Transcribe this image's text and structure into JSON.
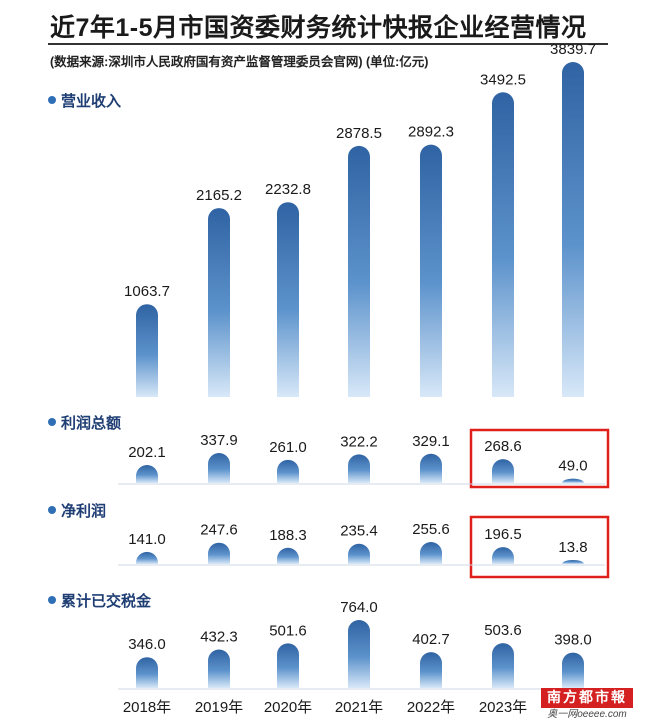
{
  "title": "近7年1-5月市国资委财务统计快报企业经营情况",
  "subtitle": "(数据来源:深圳市人民政府国有资产监督管理委员会官网) (单位:亿元)",
  "watermark": {
    "main": "南方都市報",
    "sub": "奥一网oeeee.com"
  },
  "colors": {
    "bar_top": "#2f63a3",
    "bar_bottom": "#d8e8f8",
    "highlight_box": "#e0201a",
    "section_text": "#1f3e74"
  },
  "chart_data": [
    {
      "type": "bar",
      "title": "营业收入",
      "categories": [
        "2018年",
        "2019年",
        "2020年",
        "2021年",
        "2022年",
        "2023年",
        ""
      ],
      "values": [
        1063.7,
        2165.2,
        2232.8,
        2878.5,
        2892.3,
        3492.5,
        3839.7
      ],
      "value_labels": [
        "1063.7",
        "2165.2",
        "2232.8",
        "2878.5",
        "2892.3",
        "3492.5",
        "3839.7"
      ]
    },
    {
      "type": "bar",
      "title": "利润总额",
      "categories": [
        "2018年",
        "2019年",
        "2020年",
        "2021年",
        "2022年",
        "2023年",
        ""
      ],
      "values": [
        202.1,
        337.9,
        261.0,
        322.2,
        329.1,
        268.6,
        49.0
      ],
      "value_labels": [
        "202.1",
        "337.9",
        "261.0",
        "322.2",
        "329.1",
        "268.6",
        "49.0"
      ],
      "highlighted_indices": [
        5,
        6
      ]
    },
    {
      "type": "bar",
      "title": "净利润",
      "categories": [
        "2018年",
        "2019年",
        "2020年",
        "2021年",
        "2022年",
        "2023年",
        ""
      ],
      "values": [
        141.0,
        247.6,
        188.3,
        235.4,
        255.6,
        196.5,
        13.8
      ],
      "value_labels": [
        "141.0",
        "247.6",
        "188.3",
        "235.4",
        "255.6",
        "196.5",
        "13.8"
      ],
      "highlighted_indices": [
        5,
        6
      ]
    },
    {
      "type": "bar",
      "title": "累计已交税金",
      "categories": [
        "2018年",
        "2019年",
        "2020年",
        "2021年",
        "2022年",
        "2023年",
        ""
      ],
      "values": [
        346.0,
        432.3,
        501.6,
        764.0,
        402.7,
        503.6,
        398.0
      ],
      "value_labels": [
        "346.0",
        "432.3",
        "501.6",
        "764.0",
        "402.7",
        "503.6",
        "398.0"
      ]
    }
  ],
  "x_axis_labels": [
    "2018年",
    "2019年",
    "2020年",
    "2021年",
    "2022年",
    "2023年"
  ]
}
